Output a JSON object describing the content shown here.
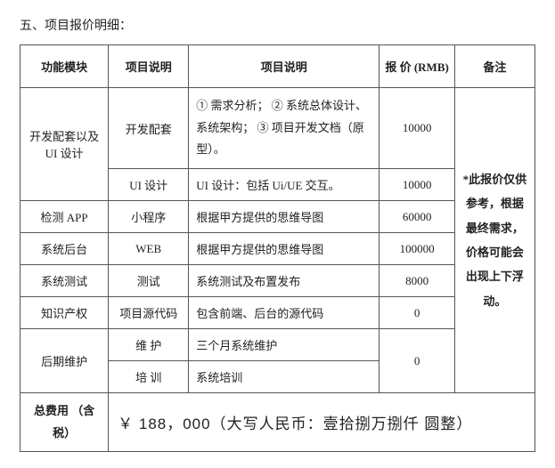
{
  "title": "五、项目报价明细：",
  "columns": {
    "module": "功能模块",
    "spec1": "项目说明",
    "spec2": "项目说明",
    "price": "报 价\n(RMB)",
    "note": "备注"
  },
  "note_text": "*此报价仅供参考，根据最终需求，价格可能会出现上下浮动。",
  "rows": {
    "dev_module": "开发配套以及UI 设计",
    "dev_spec1": "开发配套",
    "dev_spec2": "① 需求分析；\n② 系统总体设计、系统架构；\n③ 项目开发文档（原型）。",
    "dev_price": "10000",
    "ui_spec1": "UI 设计",
    "ui_spec2": "UI 设计：包括 Ui/UE 交互。",
    "ui_price": "10000",
    "app_module": "检测 APP",
    "app_spec1": "小程序",
    "app_spec2": "根据甲方提供的思维导图",
    "app_price": "60000",
    "web_module": "系统后台",
    "web_spec1": "WEB",
    "web_spec2": "根据甲方提供的思维导图",
    "web_price": "100000",
    "test_module": "系统测试",
    "test_spec1": "测试",
    "test_spec2": "系统测试及布置发布",
    "test_price": "8000",
    "ip_module": "知识产权",
    "ip_spec1": "项目源代码",
    "ip_spec2": "包含前端、后台的源代码",
    "ip_price": "0",
    "maint_module": "后期维护",
    "maint_spec1": "维 护",
    "maint_spec2": "三个月系统维护",
    "maint_price": "0",
    "train_spec1": "培 训",
    "train_spec2": "系统培训"
  },
  "total": {
    "label": "总费用\n（含税）",
    "value": "￥ 188，000（大写人民币：壹拾捌万捌仟 圆整）"
  }
}
